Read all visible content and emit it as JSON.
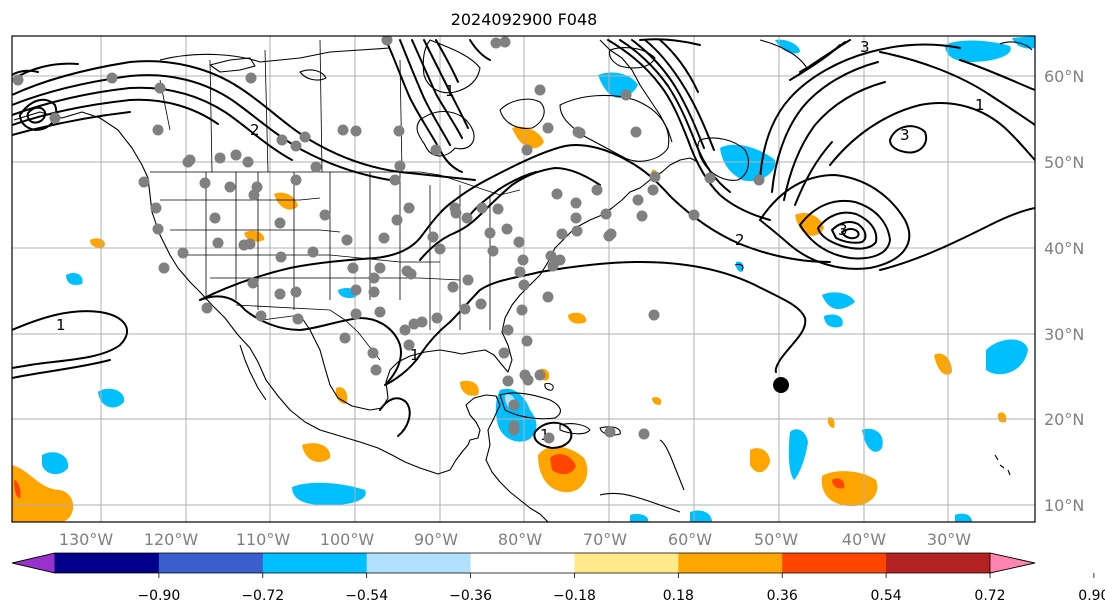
{
  "title": "2024092900 F048",
  "lon_labels": [
    "130°W",
    "120°W",
    "110°W",
    "100°W",
    "90°W",
    "80°W",
    "70°W",
    "60°W",
    "50°W",
    "40°W",
    "30°W"
  ],
  "lat_labels": [
    "60°N",
    "50°N",
    "40°N",
    "30°N",
    "20°N",
    "10°N"
  ],
  "colorbar": {
    "ticks": [
      "−0.90",
      "−0.72",
      "−0.54",
      "−0.36",
      "−0.18",
      "0.18",
      "0.36",
      "0.54",
      "0.72",
      "0.90"
    ],
    "colors": [
      "#9932cc",
      "#00008b",
      "#3a5fcd",
      "#00bfff",
      "#b2e0ff",
      "#ffffff",
      "#ffe98a",
      "#ffa500",
      "#ff4500",
      "#b22222",
      "#ff85b0"
    ]
  },
  "contour_labels": [
    "1",
    "1",
    "1",
    "1",
    "1",
    "2",
    "2",
    "3",
    "3",
    "3"
  ],
  "marker": {
    "lon": -50,
    "lat": 24,
    "color": "#000000"
  },
  "station_color": "#808080"
}
